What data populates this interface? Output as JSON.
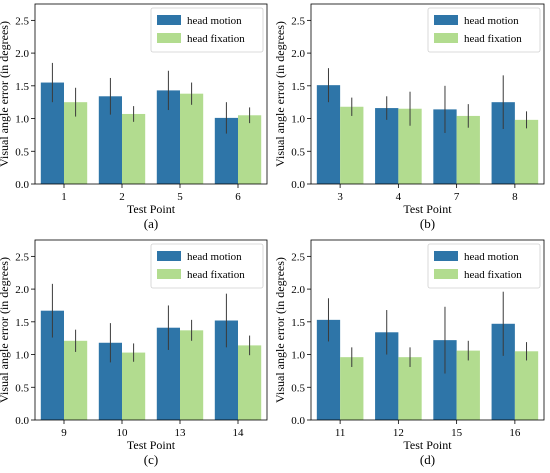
{
  "chart_data": [
    {
      "type": "bar",
      "panel_label": "(a)",
      "categories": [
        "1",
        "2",
        "5",
        "6"
      ],
      "xlabel": "Test Point",
      "ylabel": "Visual angle error (in degrees)",
      "ylim": [
        0,
        2.75
      ],
      "yticks": [
        "0.0",
        "0.5",
        "1.0",
        "1.5",
        "2.0",
        "2.5"
      ],
      "legend": "top-right",
      "series": [
        {
          "name": "head motion",
          "color": "#2e75a8",
          "values": [
            1.55,
            1.34,
            1.43,
            1.01
          ],
          "errors": [
            0.3,
            0.28,
            0.3,
            0.24
          ]
        },
        {
          "name": "head fixation",
          "color": "#b2dc8f",
          "values": [
            1.25,
            1.07,
            1.38,
            1.05
          ],
          "errors": [
            0.22,
            0.12,
            0.17,
            0.12
          ]
        }
      ]
    },
    {
      "type": "bar",
      "panel_label": "(b)",
      "categories": [
        "3",
        "4",
        "7",
        "8"
      ],
      "xlabel": "Test Point",
      "ylabel": "Visual angle error (in degrees)",
      "ylim": [
        0,
        2.75
      ],
      "yticks": [
        "0.0",
        "0.5",
        "1.0",
        "1.5",
        "2.0",
        "2.5"
      ],
      "legend": "top-right",
      "series": [
        {
          "name": "head motion",
          "color": "#2e75a8",
          "values": [
            1.51,
            1.16,
            1.14,
            1.25
          ],
          "errors": [
            0.26,
            0.18,
            0.36,
            0.41
          ]
        },
        {
          "name": "head fixation",
          "color": "#b2dc8f",
          "values": [
            1.18,
            1.15,
            1.04,
            0.98
          ],
          "errors": [
            0.14,
            0.26,
            0.18,
            0.13
          ]
        }
      ]
    },
    {
      "type": "bar",
      "panel_label": "(c)",
      "categories": [
        "9",
        "10",
        "13",
        "14"
      ],
      "xlabel": "Test Point",
      "ylabel": "Visual angle error (in degrees)",
      "ylim": [
        0,
        2.75
      ],
      "yticks": [
        "0.0",
        "0.5",
        "1.0",
        "1.5",
        "2.0",
        "2.5"
      ],
      "legend": "top-right",
      "series": [
        {
          "name": "head motion",
          "color": "#2e75a8",
          "values": [
            1.67,
            1.18,
            1.41,
            1.52
          ],
          "errors": [
            0.41,
            0.3,
            0.34,
            0.41
          ]
        },
        {
          "name": "head fixation",
          "color": "#b2dc8f",
          "values": [
            1.21,
            1.03,
            1.37,
            1.14
          ],
          "errors": [
            0.17,
            0.14,
            0.16,
            0.15
          ]
        }
      ]
    },
    {
      "type": "bar",
      "panel_label": "(d)",
      "categories": [
        "11",
        "12",
        "15",
        "16"
      ],
      "xlabel": "Test Point",
      "ylabel": "Visual angle error (in degrees)",
      "ylim": [
        0,
        2.75
      ],
      "yticks": [
        "0.0",
        "0.5",
        "1.0",
        "1.5",
        "2.0",
        "2.5"
      ],
      "legend": "top-right",
      "series": [
        {
          "name": "head motion",
          "color": "#2e75a8",
          "values": [
            1.53,
            1.34,
            1.22,
            1.47
          ],
          "errors": [
            0.33,
            0.34,
            0.51,
            0.49
          ]
        },
        {
          "name": "head fixation",
          "color": "#b2dc8f",
          "values": [
            0.96,
            0.96,
            1.06,
            1.05
          ],
          "errors": [
            0.15,
            0.15,
            0.15,
            0.14
          ]
        }
      ]
    }
  ]
}
